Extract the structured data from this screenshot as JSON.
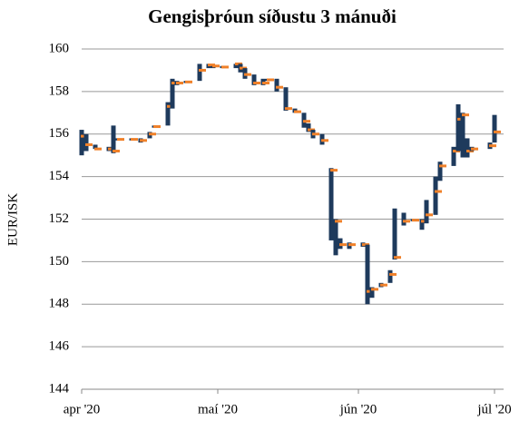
{
  "chart_data": {
    "type": "hlc",
    "title": "Gengisþróun síðustu 3 mánuði",
    "y_label": "EUR/ISK",
    "x": [
      0,
      1,
      3,
      6,
      7,
      8,
      11,
      13,
      15,
      16,
      19,
      20,
      21,
      23,
      26,
      28,
      29,
      31,
      34,
      35,
      36,
      38,
      40,
      41,
      43,
      45,
      47,
      49,
      50,
      51,
      53,
      55,
      56,
      57,
      59,
      62,
      63,
      64,
      66,
      68,
      69,
      71,
      73,
      75,
      76,
      78,
      79,
      82,
      83,
      84,
      85,
      86,
      90,
      91
    ],
    "high": [
      156.2,
      156.0,
      155.5,
      155.4,
      156.4,
      155.8,
      155.8,
      155.8,
      156.1,
      156.4,
      157.5,
      158.6,
      158.5,
      158.5,
      159.3,
      159.3,
      159.2,
      159.2,
      159.3,
      159.3,
      159.1,
      158.8,
      158.6,
      158.6,
      158.6,
      158.2,
      157.2,
      157.0,
      156.5,
      156.2,
      156.0,
      154.4,
      152.0,
      151.1,
      150.9,
      150.9,
      150.8,
      148.8,
      149.0,
      149.6,
      152.5,
      152.3,
      152.0,
      152.0,
      152.9,
      154.0,
      154.7,
      155.4,
      157.4,
      157.0,
      155.8,
      155.4,
      155.6,
      156.9
    ],
    "low": [
      155.0,
      155.2,
      155.3,
      155.2,
      155.1,
      155.7,
      155.7,
      155.6,
      155.8,
      156.3,
      156.4,
      157.2,
      158.3,
      158.4,
      158.5,
      159.1,
      159.1,
      159.1,
      159.1,
      158.9,
      158.6,
      158.3,
      158.3,
      158.5,
      158.0,
      157.1,
      157.0,
      156.3,
      156.1,
      155.8,
      155.5,
      151.0,
      150.3,
      150.6,
      150.6,
      150.7,
      148.0,
      148.3,
      148.8,
      149.0,
      150.1,
      151.7,
      151.9,
      151.5,
      151.8,
      152.2,
      153.8,
      154.5,
      155.2,
      154.9,
      154.9,
      155.2,
      155.3,
      155.6
    ],
    "close": [
      155.9,
      155.5,
      155.3,
      155.3,
      155.2,
      155.75,
      155.75,
      155.7,
      156.0,
      156.35,
      157.3,
      158.4,
      158.4,
      158.45,
      159.0,
      159.25,
      159.2,
      159.15,
      159.3,
      159.1,
      158.8,
      158.4,
      158.4,
      158.55,
      158.2,
      157.2,
      157.05,
      156.6,
      156.2,
      156.0,
      155.7,
      154.3,
      151.9,
      150.8,
      150.8,
      150.8,
      148.6,
      148.7,
      148.9,
      149.4,
      150.2,
      151.9,
      151.95,
      151.9,
      152.2,
      153.3,
      154.5,
      155.2,
      156.7,
      156.9,
      155.2,
      155.3,
      155.45,
      156.1
    ],
    "bar_color": "#1e3a5c",
    "close_color": "#f0812a",
    "xlim": [
      0,
      93
    ],
    "xticks": [
      {
        "value": 0,
        "label": "apr '20"
      },
      {
        "value": 30,
        "label": "maí '20"
      },
      {
        "value": 61,
        "label": "jún '20"
      },
      {
        "value": 91,
        "label": "júl '20"
      }
    ],
    "ylim": [
      144,
      160
    ],
    "yticks": [
      144,
      146,
      148,
      150,
      152,
      154,
      156,
      158,
      160
    ],
    "grid": true
  }
}
